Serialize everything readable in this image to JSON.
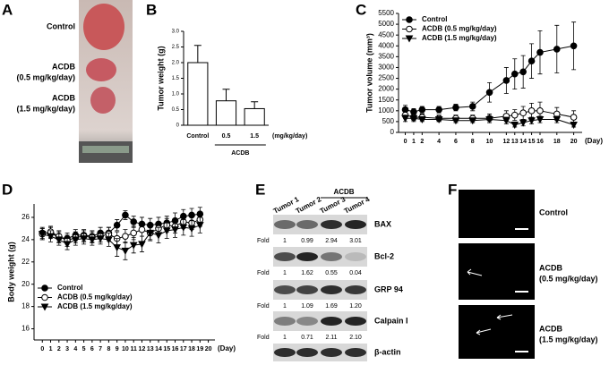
{
  "panel_labels": [
    "A",
    "B",
    "C",
    "D",
    "E",
    "F"
  ],
  "panel_a": {
    "groups": [
      {
        "name": "Control"
      },
      {
        "name": "ACDB",
        "dose": "(0.5 mg/kg/day)"
      },
      {
        "name": "ACDB",
        "dose": "(1.5 mg/kg/day)"
      }
    ]
  },
  "chart_data": [
    {
      "type": "bar",
      "ylabel": "Tumor weight (g)",
      "categories": [
        "Control",
        "0.5",
        "1.5"
      ],
      "values": [
        2.0,
        0.78,
        0.53
      ],
      "errors": [
        0.55,
        0.37,
        0.22
      ],
      "color": "#ffffff",
      "group_label": "ACDB",
      "unit_label": "(mg/kg/day)",
      "ylim": [
        0,
        3
      ],
      "yticks": [
        0,
        0.5,
        {
          "value": 1,
          "label": "1.0"
        },
        1.5,
        {
          "value": 2,
          "label": "2.0"
        },
        2.5,
        {
          "value": 3,
          "label": "3.0"
        }
      ]
    },
    {
      "type": "line",
      "ylabel": "Tumor volume (mm³)",
      "xlabel": "(Day)",
      "x": [
        0,
        1,
        2,
        4,
        6,
        8,
        10,
        12,
        13,
        14,
        15,
        16,
        18,
        20
      ],
      "xlim": [
        -0.8,
        21
      ],
      "xticks": [
        0,
        1,
        2,
        4,
        6,
        8,
        10,
        12,
        13,
        14,
        15,
        16,
        18,
        20
      ],
      "ylim": [
        0,
        5500
      ],
      "yticks": [
        0,
        500,
        1000,
        1500,
        2000,
        2500,
        3000,
        3500,
        4000,
        4500,
        5000,
        5500
      ],
      "legend": "upper left",
      "series": [
        {
          "name": "Control",
          "marker": "circle",
          "color": "#000000",
          "values": [
            1050,
            950,
            1050,
            1050,
            1150,
            1200,
            1850,
            2400,
            2700,
            2800,
            3300,
            3700,
            3850,
            4000
          ],
          "errors": [
            200,
            150,
            150,
            150,
            150,
            200,
            450,
            600,
            700,
            750,
            800,
            1000,
            1100,
            1100
          ]
        },
        {
          "name": "ACDB  (0.5 mg/kg/day)",
          "marker": "open-circle",
          "color": "#000000",
          "values": [
            800,
            700,
            700,
            650,
            650,
            650,
            650,
            750,
            800,
            900,
            1000,
            1000,
            850,
            700
          ],
          "errors": [
            150,
            150,
            150,
            150,
            150,
            150,
            200,
            250,
            250,
            300,
            350,
            400,
            300,
            300
          ]
        },
        {
          "name": "ACDB  (1.5 mg/kg/day)",
          "marker": "triangle-down",
          "color": "#000000",
          "values": [
            650,
            650,
            600,
            600,
            550,
            550,
            600,
            550,
            350,
            450,
            550,
            600,
            600,
            350
          ],
          "errors": [
            150,
            150,
            100,
            100,
            100,
            100,
            150,
            150,
            100,
            150,
            150,
            150,
            150,
            100
          ]
        }
      ]
    },
    {
      "type": "line",
      "ylabel": "Body weight (g)",
      "xlabel": "(Day)",
      "x": [
        0,
        1,
        2,
        3,
        4,
        5,
        6,
        7,
        8,
        9,
        10,
        11,
        12,
        13,
        14,
        15,
        16,
        17,
        18,
        19
      ],
      "xlim": [
        -1,
        20.8
      ],
      "xticks": [
        0,
        1,
        2,
        3,
        4,
        5,
        6,
        7,
        8,
        9,
        10,
        11,
        12,
        13,
        14,
        15,
        16,
        17,
        18,
        19,
        20
      ],
      "ylim": [
        15,
        27.2
      ],
      "yticks": [
        16,
        18,
        20,
        22,
        24,
        26
      ],
      "legend": "lower left",
      "series": [
        {
          "name": "Control",
          "marker": "circle",
          "color": "#000000",
          "values": [
            24.6,
            24.6,
            24.2,
            24.1,
            24.4,
            24.4,
            24.3,
            24.6,
            24.6,
            25.3,
            26.2,
            25.6,
            25.4,
            25.3,
            25.4,
            25.5,
            25.7,
            26.1,
            26.2,
            26.3
          ],
          "errors": [
            0.5,
            0.5,
            0.5,
            0.5,
            0.5,
            0.5,
            0.5,
            0.5,
            0.5,
            0.5,
            0.4,
            0.5,
            0.6,
            0.6,
            0.6,
            0.6,
            0.7,
            0.6,
            0.6,
            0.6
          ]
        },
        {
          "name": "ACDB (0.5 mg/kg/day)",
          "marker": "open-circle",
          "color": "#000000",
          "values": [
            24.5,
            24.7,
            24.3,
            23.9,
            24.2,
            24.3,
            24.2,
            24.3,
            24.5,
            24.1,
            24.3,
            24.6,
            24.9,
            24.6,
            25.0,
            25.3,
            25.2,
            25.6,
            25.5,
            25.8
          ],
          "errors": [
            0.5,
            0.5,
            0.5,
            0.5,
            0.5,
            0.5,
            0.5,
            0.5,
            0.6,
            0.6,
            0.6,
            0.6,
            0.6,
            0.6,
            0.6,
            0.6,
            0.6,
            0.6,
            0.6,
            0.6
          ]
        },
        {
          "name": "ACDB (1.5 mg/kg/day)",
          "marker": "triangle-down",
          "color": "#000000",
          "values": [
            24.5,
            24.3,
            24.0,
            23.6,
            24.0,
            24.1,
            24.0,
            24.1,
            24.0,
            23.3,
            23.0,
            23.5,
            23.6,
            24.6,
            24.4,
            24.8,
            24.9,
            25.1,
            25.0,
            25.3
          ],
          "errors": [
            0.5,
            0.5,
            0.5,
            0.5,
            0.5,
            0.5,
            0.5,
            0.5,
            0.6,
            0.8,
            0.8,
            0.7,
            0.7,
            0.7,
            0.7,
            0.7,
            0.7,
            0.7,
            0.7,
            0.7
          ]
        }
      ]
    }
  ],
  "blot": {
    "group": "ACDB",
    "lanes": [
      "Tumor 1",
      "Tumor 2",
      "Tumor 3",
      "Tumor 4"
    ],
    "fold_label": "Fold",
    "rows": [
      {
        "protein": "BAX",
        "folds": [
          "1",
          "0.99",
          "2.94",
          "3.01"
        ]
      },
      {
        "protein": "Bcl-2",
        "folds": [
          "1",
          "1.62",
          "0.55",
          "0.04"
        ]
      },
      {
        "protein": "GRP 94",
        "folds": [
          "1",
          "1.09",
          "1.69",
          "1.20"
        ]
      },
      {
        "protein": "Calpain I",
        "folds": [
          "1",
          "0.71",
          "2.11",
          "2.10"
        ]
      },
      {
        "protein": "β-actin"
      }
    ]
  },
  "panel_f": {
    "groups": [
      {
        "name": "Control"
      },
      {
        "name": "ACDB",
        "dose": "(0.5 mg/kg/day)"
      },
      {
        "name": "ACDB",
        "dose": "(1.5 mg/kg/day)"
      }
    ]
  }
}
